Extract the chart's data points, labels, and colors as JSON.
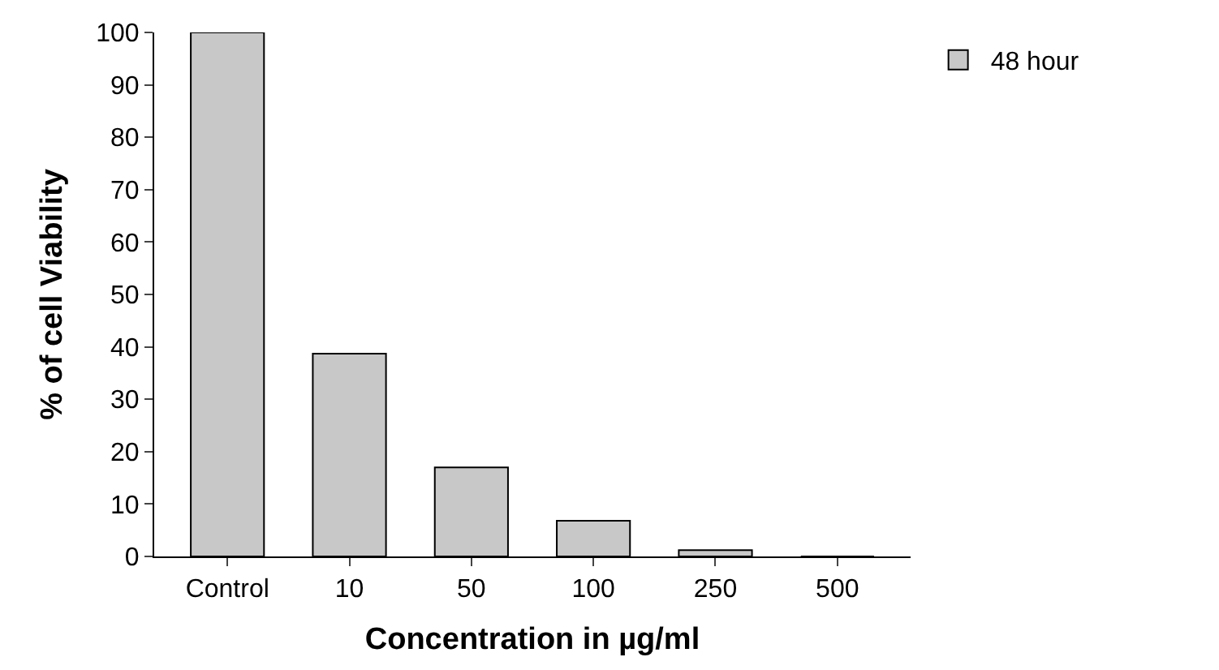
{
  "chart_data": {
    "type": "bar",
    "xlabel": "Concentration in µg/ml",
    "ylabel": "% of cell Viability",
    "categories": [
      "Control",
      "10",
      "50",
      "100",
      "250",
      "500"
    ],
    "series": [
      {
        "name": "48 hour",
        "color": "#c8c8c8",
        "values": [
          100,
          38.7,
          17,
          6.8,
          1.2,
          0
        ]
      }
    ],
    "ylim": [
      0,
      100
    ],
    "yticks": [
      0,
      10,
      20,
      30,
      40,
      50,
      60,
      70,
      80,
      90,
      100
    ],
    "legend": "top right"
  }
}
